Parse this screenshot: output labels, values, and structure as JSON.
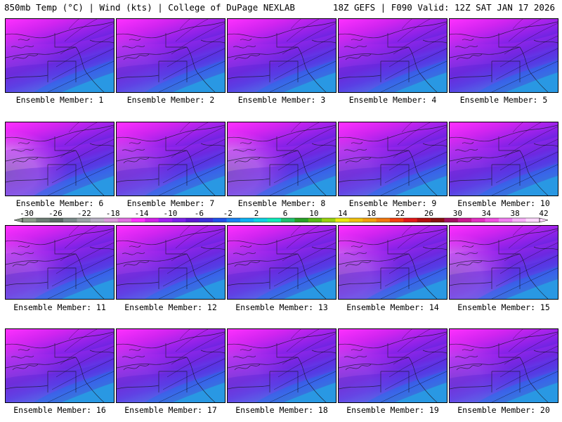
{
  "header": {
    "left_title": "850mb Temp (°C) | Wind (kts) | College of DuPage NEXLAB",
    "right_title": "18Z GEFS | F090 Valid: 12Z SAT JAN 17 2026"
  },
  "members": [
    {
      "label": "Ensemble Member: 1"
    },
    {
      "label": "Ensemble Member: 2"
    },
    {
      "label": "Ensemble Member: 3"
    },
    {
      "label": "Ensemble Member: 4"
    },
    {
      "label": "Ensemble Member: 5"
    },
    {
      "label": "Ensemble Member: 6"
    },
    {
      "label": "Ensemble Member: 7"
    },
    {
      "label": "Ensemble Member: 8"
    },
    {
      "label": "Ensemble Member: 9"
    },
    {
      "label": "Ensemble Member: 10"
    },
    {
      "label": "Ensemble Member: 11"
    },
    {
      "label": "Ensemble Member: 12"
    },
    {
      "label": "Ensemble Member: 13"
    },
    {
      "label": "Ensemble Member: 14"
    },
    {
      "label": "Ensemble Member: 15"
    },
    {
      "label": "Ensemble Member: 16"
    },
    {
      "label": "Ensemble Member: 17"
    },
    {
      "label": "Ensemble Member: 18"
    },
    {
      "label": "Ensemble Member: 19"
    },
    {
      "label": "Ensemble Member: 20"
    }
  ],
  "colorbar": {
    "unit": "°C",
    "tick_labels": [
      "-30",
      "-26",
      "-22",
      "-18",
      "-14",
      "-10",
      "-6",
      "-2",
      "2",
      "6",
      "10",
      "14",
      "18",
      "22",
      "26",
      "30",
      "34",
      "38",
      "42"
    ],
    "colors": [
      "#8a9a8a",
      "#6c7c74",
      "#5a6a66",
      "#7a8a8a",
      "#9aa2a6",
      "#b8b0c4",
      "#d89ad8",
      "#e070e0",
      "#ff30ff",
      "#d020e8",
      "#a020f0",
      "#7a20e8",
      "#5a18d0",
      "#3a30d8",
      "#2050e8",
      "#1880f0",
      "#10b0f0",
      "#10d0e0",
      "#10e8b8",
      "#20c070",
      "#28a028",
      "#58b818",
      "#98d010",
      "#e8e810",
      "#f0c010",
      "#f0a010",
      "#f07810",
      "#f04010",
      "#e01818",
      "#b01010",
      "#881010",
      "#a01060",
      "#c81890",
      "#e030c0",
      "#f050e0",
      "#f080f0",
      "#f8b0f8",
      "#ffd8ff"
    ]
  }
}
